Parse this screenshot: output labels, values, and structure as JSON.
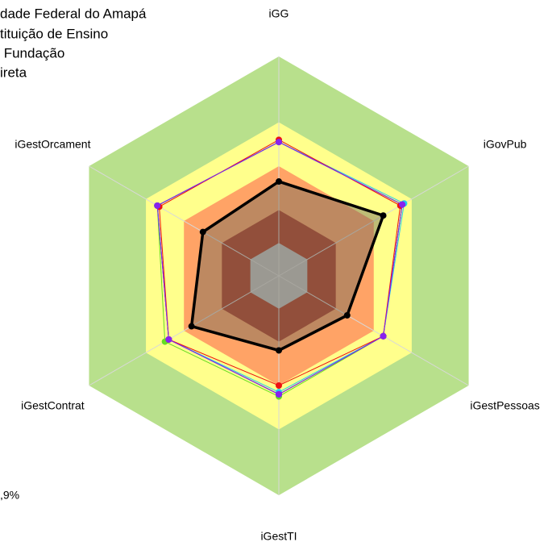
{
  "chart_data": {
    "type": "radar",
    "axes": [
      "iGG",
      "iGovPub",
      "iGestPessoas",
      "iGestTI",
      "iGestContrat",
      "iGestOrcament"
    ],
    "rlim": [
      0,
      1
    ],
    "bands": [
      {
        "value": 1.0,
        "color": "#b8e08c"
      },
      {
        "value": 0.7,
        "color": "#ffff8c"
      },
      {
        "value": 0.5,
        "color": "#ffa366"
      },
      {
        "value": 0.3,
        "color": "#b03a22"
      },
      {
        "value": 0.15,
        "color": "#c0c0c0"
      }
    ],
    "series": [
      {
        "color": "#66dd22",
        "values": [
          0.61,
          0.65,
          0.55,
          0.55,
          0.6,
          0.64
        ]
      },
      {
        "color": "#22ccee",
        "values": [
          0.61,
          0.66,
          0.55,
          0.53,
          0.58,
          0.64
        ]
      },
      {
        "color": "#2233ee",
        "values": [
          0.61,
          0.65,
          0.55,
          0.54,
          0.58,
          0.64
        ]
      },
      {
        "color": "#ee1111",
        "values": [
          0.62,
          0.64,
          0.55,
          0.5,
          0.58,
          0.63
        ]
      },
      {
        "color": "#8822ee",
        "values": [
          0.61,
          0.65,
          0.55,
          0.54,
          0.58,
          0.64
        ]
      },
      {
        "color": "#000000",
        "fill": "#6e6a5a",
        "fill_opacity": 0.45,
        "width": 3.5,
        "values": [
          0.43,
          0.55,
          0.36,
          0.34,
          0.46,
          0.4
        ]
      }
    ],
    "legend_texts": [
      "dade Federal do Amapá",
      "tituição de Ensino",
      " Fundação",
      "ireta"
    ],
    "note": ",9%"
  }
}
